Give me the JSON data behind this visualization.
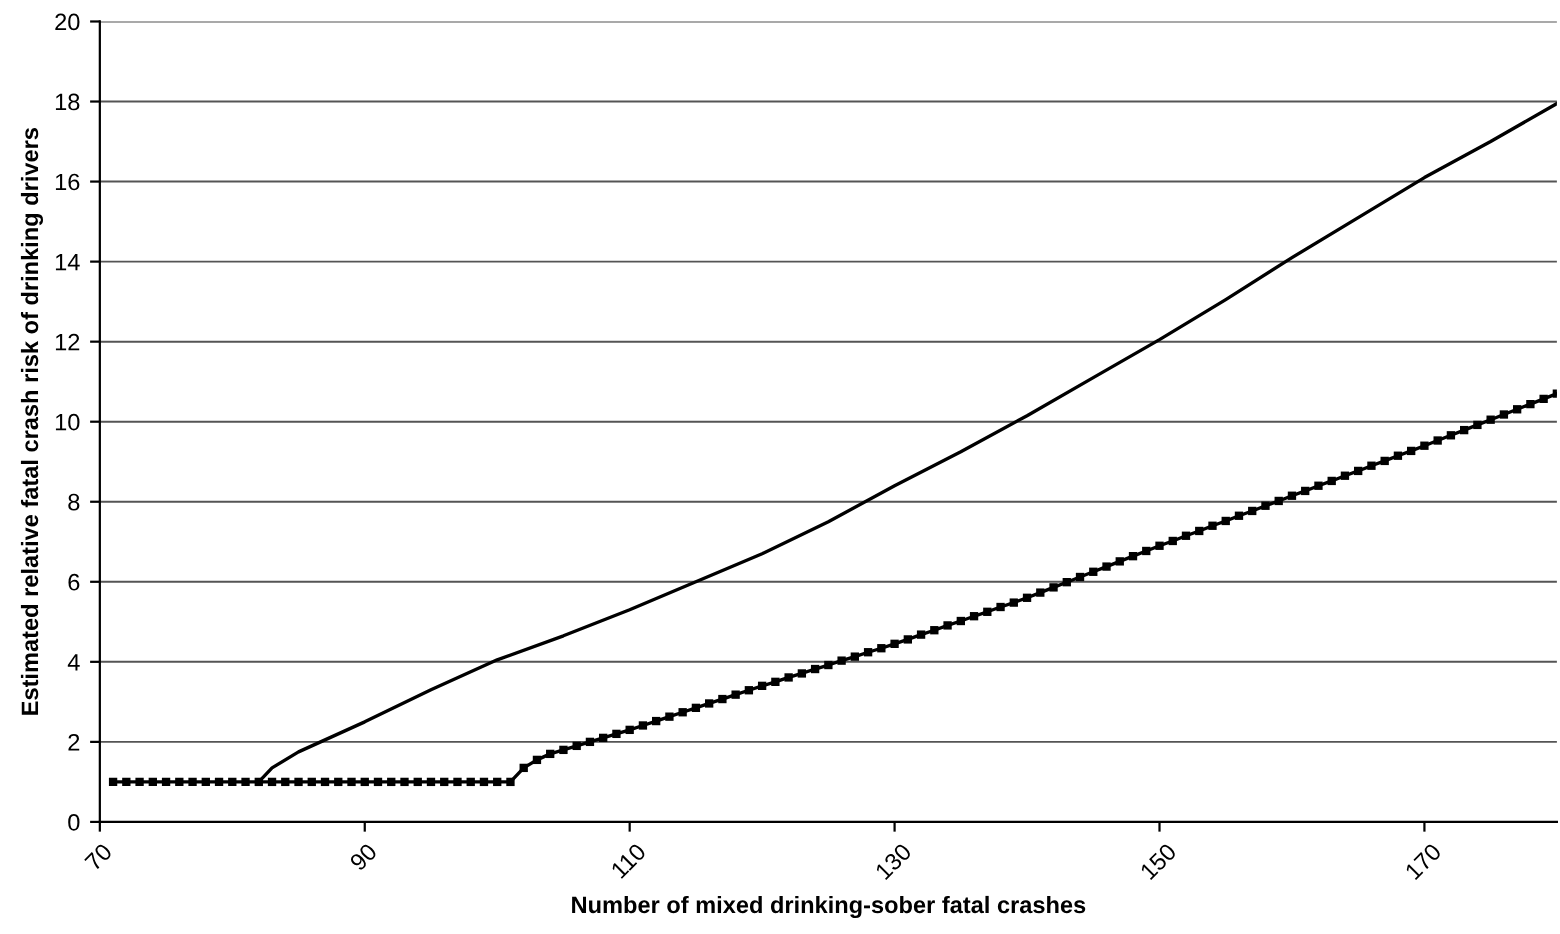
{
  "chart_data": {
    "type": "line",
    "xlabel": "Number of mixed drinking-sober fatal crashes",
    "ylabel": "Estimated relative fatal crash risk of drinking drivers",
    "xlim": [
      70,
      180
    ],
    "xticks": [
      70,
      90,
      110,
      130,
      150,
      170
    ],
    "ylim": [
      0,
      20
    ],
    "yticks": [
      0,
      2,
      4,
      6,
      8,
      10,
      12,
      14,
      16,
      18,
      20
    ],
    "grid": "y",
    "legend": false,
    "series": [
      {
        "color": "#000000",
        "marker": "none",
        "x": [
          82,
          83,
          85,
          88,
          90,
          95,
          100,
          105,
          110,
          115,
          120,
          125,
          130,
          135,
          140,
          145,
          150,
          155,
          160,
          165,
          170,
          175,
          180
        ],
        "values": [
          1.0,
          1.35,
          1.75,
          2.2,
          2.5,
          3.3,
          4.05,
          4.65,
          5.3,
          6.0,
          6.7,
          7.5,
          8.4,
          9.25,
          10.15,
          11.1,
          12.05,
          13.05,
          14.1,
          15.1,
          16.1,
          17.0,
          17.95
        ]
      },
      {
        "color": "#000000",
        "marker": "square",
        "x": [
          71,
          72,
          73,
          74,
          75,
          76,
          77,
          78,
          79,
          80,
          81,
          82,
          83,
          84,
          85,
          86,
          87,
          88,
          89,
          90,
          91,
          92,
          93,
          94,
          95,
          96,
          97,
          98,
          99,
          100,
          101,
          102,
          103,
          104,
          105,
          106,
          107,
          108,
          109,
          110,
          111,
          112,
          113,
          114,
          115,
          116,
          117,
          118,
          119,
          120,
          121,
          122,
          123,
          124,
          125,
          126,
          127,
          128,
          129,
          130,
          131,
          132,
          133,
          134,
          135,
          136,
          137,
          138,
          139,
          140,
          141,
          142,
          143,
          144,
          145,
          146,
          147,
          148,
          149,
          150,
          151,
          152,
          153,
          154,
          155,
          156,
          157,
          158,
          159,
          160,
          161,
          162,
          163,
          164,
          165,
          166,
          167,
          168,
          169,
          170,
          171,
          172,
          173,
          174,
          175,
          176,
          177,
          178,
          179,
          180
        ],
        "values": [
          1,
          1,
          1,
          1,
          1,
          1,
          1,
          1,
          1,
          1,
          1,
          1,
          1,
          1,
          1,
          1,
          1,
          1,
          1,
          1,
          1,
          1,
          1,
          1,
          1,
          1,
          1,
          1,
          1,
          1,
          1,
          1.35,
          1.55,
          1.7,
          1.8,
          1.9,
          2.0,
          2.1,
          2.2,
          2.3,
          2.41,
          2.52,
          2.63,
          2.74,
          2.85,
          2.96,
          3.07,
          3.18,
          3.29,
          3.4,
          3.5,
          3.61,
          3.71,
          3.82,
          3.92,
          4.03,
          4.13,
          4.24,
          4.34,
          4.45,
          4.56,
          4.68,
          4.79,
          4.91,
          5.02,
          5.14,
          5.25,
          5.37,
          5.48,
          5.6,
          5.73,
          5.86,
          5.99,
          6.12,
          6.25,
          6.38,
          6.51,
          6.64,
          6.77,
          6.9,
          7.02,
          7.15,
          7.27,
          7.4,
          7.52,
          7.65,
          7.77,
          7.9,
          8.02,
          8.15,
          8.27,
          8.4,
          8.52,
          8.65,
          8.77,
          8.9,
          9.02,
          9.15,
          9.27,
          9.4,
          9.53,
          9.66,
          9.79,
          9.92,
          10.05,
          10.18,
          10.31,
          10.44,
          10.57,
          10.7
        ]
      }
    ]
  }
}
